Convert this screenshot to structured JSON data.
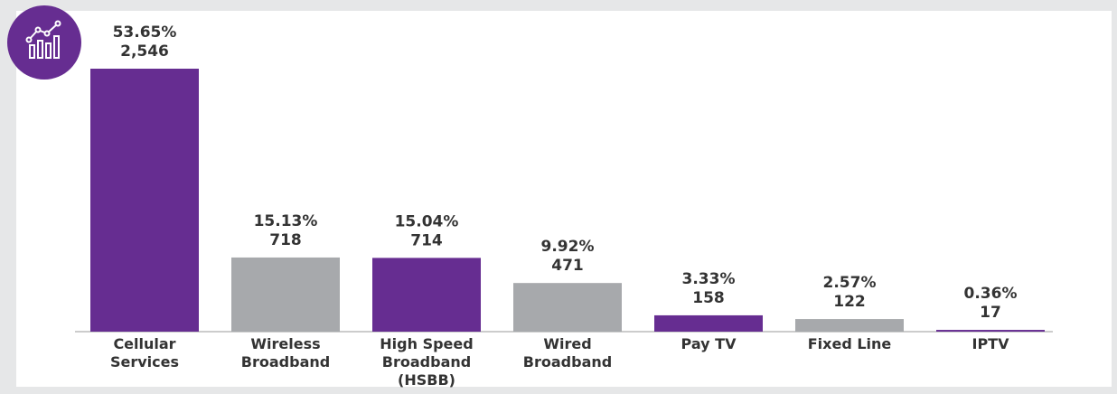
{
  "chart_data": {
    "type": "bar",
    "categories": [
      "Cellular\nServices",
      "Wireless\nBroadband",
      "High Speed\nBroadband (HSBB)",
      "Wired\nBroadband",
      "Pay TV",
      "Fixed Line",
      "IPTV"
    ],
    "values": [
      2546,
      718,
      714,
      471,
      158,
      122,
      17
    ],
    "value_labels": [
      "2,546",
      "718",
      "714",
      "471",
      "158",
      "122",
      "17"
    ],
    "percent_labels": [
      "53.65%",
      "15.13%",
      "15.04%",
      "9.92%",
      "3.33%",
      "2.57%",
      "0.36%"
    ],
    "colors": [
      "#662d91",
      "#a7a9ac",
      "#662d91",
      "#a7a9ac",
      "#662d91",
      "#a7a9ac",
      "#662d91"
    ]
  }
}
